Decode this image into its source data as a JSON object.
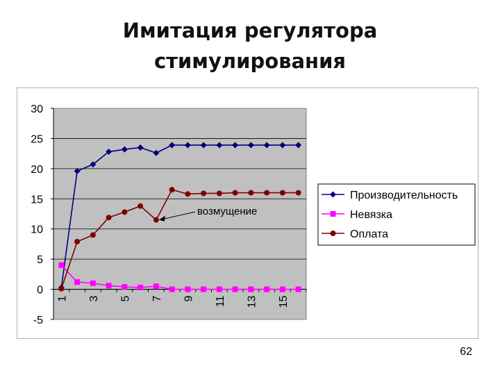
{
  "slide": {
    "title_line1": "Имитация регулятора",
    "title_line2": "стимулирования",
    "page_number": "62"
  },
  "chart_data": {
    "type": "line",
    "title": "",
    "xlabel": "",
    "ylabel": "",
    "x": [
      1,
      2,
      3,
      4,
      5,
      6,
      7,
      8,
      9,
      10,
      11,
      12,
      13,
      14,
      15,
      16
    ],
    "x_tick_labels": [
      "1",
      "3",
      "5",
      "7",
      "9",
      "11",
      "13",
      "15"
    ],
    "ylim": [
      -5,
      30
    ],
    "y_ticks": [
      -5,
      0,
      5,
      10,
      15,
      20,
      25,
      30
    ],
    "grid": "horizontal",
    "plot_background": "#c0c0c0",
    "legend_position": "right",
    "series": [
      {
        "name": "Производительность",
        "color": "#000080",
        "marker": "diamond",
        "values": [
          0.3,
          19.6,
          20.7,
          22.8,
          23.2,
          23.5,
          22.6,
          23.9,
          23.9,
          23.9,
          23.9,
          23.9,
          23.9,
          23.9,
          23.9,
          23.9
        ]
      },
      {
        "name": "Невязка",
        "color": "#ff00ff",
        "marker": "square",
        "values": [
          4.0,
          1.2,
          1.0,
          0.6,
          0.4,
          0.3,
          0.5,
          0.0,
          0.0,
          0.0,
          0.0,
          0.0,
          0.0,
          0.0,
          0.0,
          0.0
        ]
      },
      {
        "name": "Оплата",
        "color": "#800000",
        "marker": "circle",
        "values": [
          0.1,
          7.9,
          9.0,
          11.9,
          12.8,
          13.8,
          11.5,
          16.5,
          15.8,
          15.9,
          15.9,
          16.0,
          16.0,
          16.0,
          16.0,
          16.0
        ]
      }
    ],
    "annotation": {
      "text": "возмущение",
      "x": 7,
      "y": 11.5
    }
  }
}
